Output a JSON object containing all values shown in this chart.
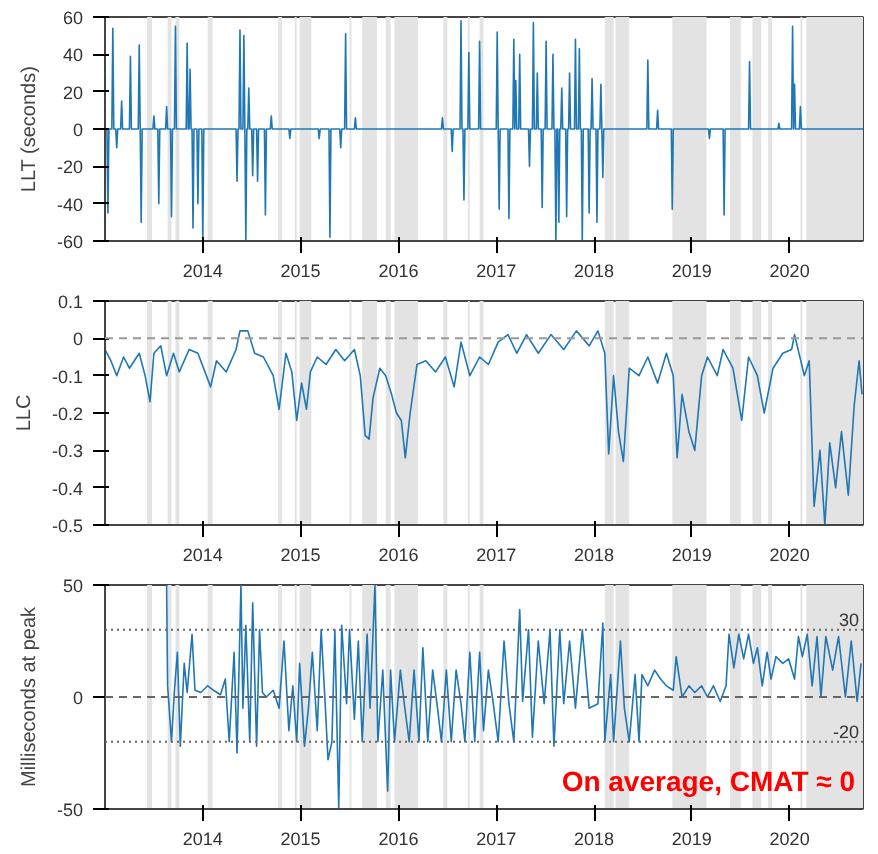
{
  "chart_data": [
    {
      "type": "line",
      "ylabel": "LLT (seconds)",
      "xlim": [
        2013,
        2020.75
      ],
      "xticks": [
        2014,
        2015,
        2016,
        2017,
        2018,
        2019,
        2020
      ],
      "ylim": [
        -60,
        60
      ],
      "yticks": [
        -60,
        -40,
        -20,
        0,
        20,
        40,
        60
      ],
      "grid": false,
      "marker": "none",
      "line_style": "solid",
      "bands": [
        {
          "axis": "x",
          "from": 2013.43,
          "to": 2013.48,
          "color": "#e3e3e3"
        },
        {
          "axis": "x",
          "from": 2013.64,
          "to": 2013.68,
          "color": "#e3e3e3"
        },
        {
          "axis": "x",
          "from": 2013.72,
          "to": 2013.76,
          "color": "#e3e3e3"
        },
        {
          "axis": "x",
          "from": 2014.05,
          "to": 2014.1,
          "color": "#e3e3e3"
        },
        {
          "axis": "x",
          "from": 2014.77,
          "to": 2014.81,
          "color": "#e3e3e3"
        },
        {
          "axis": "x",
          "from": 2014.94,
          "to": 2014.96,
          "color": "#e3e3e3"
        },
        {
          "axis": "x",
          "from": 2014.99,
          "to": 2015.11,
          "color": "#e3e3e3"
        },
        {
          "axis": "x",
          "from": 2015.5,
          "to": 2015.52,
          "color": "#e3e3e3"
        },
        {
          "axis": "x",
          "from": 2015.63,
          "to": 2015.78,
          "color": "#e3e3e3"
        },
        {
          "axis": "x",
          "from": 2015.87,
          "to": 2015.92,
          "color": "#e3e3e3"
        },
        {
          "axis": "x",
          "from": 2015.96,
          "to": 2016.2,
          "color": "#e3e3e3"
        },
        {
          "axis": "x",
          "from": 2016.46,
          "to": 2016.5,
          "color": "#e3e3e3"
        },
        {
          "axis": "x",
          "from": 2016.71,
          "to": 2016.73,
          "color": "#e3e3e3"
        },
        {
          "axis": "x",
          "from": 2016.83,
          "to": 2016.87,
          "color": "#e3e3e3"
        },
        {
          "axis": "x",
          "from": 2018.11,
          "to": 2018.2,
          "color": "#e3e3e3"
        },
        {
          "axis": "x",
          "from": 2018.22,
          "to": 2018.36,
          "color": "#e3e3e3"
        },
        {
          "axis": "x",
          "from": 2018.8,
          "to": 2019.15,
          "color": "#e3e3e3"
        },
        {
          "axis": "x",
          "from": 2019.39,
          "to": 2019.5,
          "color": "#e3e3e3"
        },
        {
          "axis": "x",
          "from": 2019.62,
          "to": 2019.71,
          "color": "#e3e3e3"
        },
        {
          "axis": "x",
          "from": 2019.78,
          "to": 2019.82,
          "color": "#e3e3e3"
        },
        {
          "axis": "x",
          "from": 2020.11,
          "to": 2020.13,
          "color": "#e3e3e3"
        },
        {
          "axis": "x",
          "from": 2020.17,
          "to": 2020.75,
          "color": "#e3e3e3"
        }
      ],
      "series": [
        {
          "color": "#1f77b4",
          "x": [
            2013.0,
            2013.02,
            2013.03,
            2013.04,
            2013.07,
            2013.08,
            2013.09,
            2013.11,
            2013.12,
            2013.13,
            2013.16,
            2013.17,
            2013.18,
            2013.25,
            2013.26,
            2013.27,
            2013.34,
            2013.35,
            2013.36,
            2013.37,
            2013.38,
            2013.49,
            2013.5,
            2013.51,
            2013.54,
            2013.55,
            2013.56,
            2013.62,
            2013.63,
            2013.64,
            2013.67,
            2013.68,
            2013.69,
            2013.71,
            2013.72,
            2013.73,
            2013.83,
            2013.84,
            2013.85,
            2013.86,
            2013.87,
            2013.88,
            2013.89,
            2013.9,
            2013.91,
            2013.94,
            2013.95,
            2013.96,
            2013.99,
            2014.0,
            2014.01,
            2014.34,
            2014.35,
            2014.36,
            2014.37,
            2014.38,
            2014.39,
            2014.41,
            2014.42,
            2014.43,
            2014.44,
            2014.45,
            2014.46,
            2014.47,
            2014.48,
            2014.5,
            2014.51,
            2014.52,
            2014.55,
            2014.56,
            2014.57,
            2014.63,
            2014.64,
            2014.65,
            2014.69,
            2014.7,
            2014.71,
            2014.88,
            2014.89,
            2014.9,
            2015.18,
            2015.19,
            2015.2,
            2015.29,
            2015.3,
            2015.31,
            2015.4,
            2015.41,
            2015.42,
            2015.45,
            2015.46,
            2015.47,
            2015.55,
            2015.56,
            2015.57,
            2016.44,
            2016.45,
            2016.46,
            2016.54,
            2016.55,
            2016.56,
            2016.63,
            2016.64,
            2016.65,
            2016.66,
            2016.67,
            2016.68,
            2016.71,
            2016.72,
            2016.73,
            2016.82,
            2016.83,
            2016.84,
            2017.0,
            2017.01,
            2017.02,
            2017.03,
            2017.04,
            2017.12,
            2017.13,
            2017.14,
            2017.17,
            2017.18,
            2017.19,
            2017.2,
            2017.21,
            2017.23,
            2017.24,
            2017.25,
            2017.33,
            2017.34,
            2017.35,
            2017.37,
            2017.38,
            2017.39,
            2017.41,
            2017.42,
            2017.43,
            2017.46,
            2017.47,
            2017.48,
            2017.5,
            2017.51,
            2017.52,
            2017.57,
            2017.58,
            2017.59,
            2017.6,
            2017.61,
            2017.62,
            2017.63,
            2017.64,
            2017.65,
            2017.66,
            2017.67,
            2017.68,
            2017.71,
            2017.72,
            2017.73,
            2017.74,
            2017.75,
            2017.76,
            2017.8,
            2017.81,
            2017.82,
            2017.84,
            2017.85,
            2017.86,
            2017.87,
            2017.88,
            2017.89,
            2017.94,
            2017.95,
            2017.96,
            2017.97,
            2017.98,
            2017.99,
            2018.02,
            2018.03,
            2018.04,
            2018.06,
            2018.07,
            2018.08,
            2018.09,
            2018.1,
            2018.54,
            2018.55,
            2018.56,
            2018.64,
            2018.65,
            2018.66,
            2018.79,
            2018.8,
            2018.81,
            2019.17,
            2019.18,
            2019.19,
            2019.32,
            2019.33,
            2019.34,
            2019.58,
            2019.59,
            2019.6,
            2019.88,
            2019.89,
            2019.9,
            2020.02,
            2020.03,
            2020.04,
            2020.05,
            2020.06,
            2020.1,
            2020.11,
            2020.12,
            2020.75
          ],
          "values": [
            0,
            0,
            -45,
            0,
            0,
            54,
            0,
            0,
            -10,
            0,
            0,
            15,
            0,
            0,
            39,
            0,
            0,
            45,
            0,
            -50,
            0,
            0,
            7,
            0,
            0,
            -40,
            0,
            0,
            12,
            0,
            0,
            -47,
            0,
            0,
            55,
            0,
            0,
            46,
            0,
            0,
            32,
            0,
            0,
            -53,
            0,
            0,
            -40,
            0,
            0,
            -60,
            0,
            0,
            -28,
            0,
            0,
            53,
            0,
            0,
            50,
            0,
            -60,
            0,
            0,
            22,
            0,
            0,
            -25,
            0,
            0,
            -28,
            0,
            0,
            -46,
            0,
            0,
            7,
            0,
            0,
            -5,
            0,
            0,
            -5,
            0,
            0,
            -58,
            0,
            0,
            -10,
            0,
            0,
            51,
            0,
            0,
            6,
            0,
            0,
            6,
            0,
            0,
            -12,
            0,
            0,
            58,
            0,
            0,
            -38,
            0,
            0,
            41,
            0,
            0,
            47,
            0,
            0,
            52,
            0,
            -43,
            0,
            0,
            -48,
            0,
            0,
            48,
            0,
            26,
            0,
            0,
            40,
            0,
            0,
            -20,
            0,
            0,
            57,
            0,
            0,
            30,
            0,
            0,
            -42,
            0,
            0,
            47,
            0,
            0,
            40,
            0,
            0,
            -60,
            0,
            0,
            -50,
            0,
            0,
            22,
            0,
            0,
            -47,
            0,
            0,
            30,
            0,
            0,
            48,
            0,
            0,
            43,
            0,
            0,
            -60,
            0,
            0,
            -45,
            0,
            0,
            27,
            0,
            0,
            -50,
            0,
            0,
            24,
            0,
            -26,
            0,
            0,
            37,
            0,
            0,
            10,
            0,
            0,
            -43,
            0,
            0,
            -5,
            0,
            0,
            -46,
            0,
            0,
            36,
            0,
            0,
            3,
            0,
            0,
            55,
            0,
            24,
            0,
            0,
            12,
            0,
            0
          ]
        }
      ]
    },
    {
      "type": "line",
      "ylabel": "LLC",
      "xlim": [
        2013,
        2020.75
      ],
      "xticks": [
        2014,
        2015,
        2016,
        2017,
        2018,
        2019,
        2020
      ],
      "ylim": [
        -0.5,
        0.1
      ],
      "yticks": [
        -0.5,
        -0.4,
        -0.3,
        -0.2,
        -0.1,
        0,
        0.1
      ],
      "grid": false,
      "marker": "none",
      "line_style": "solid",
      "ref_lines": [
        {
          "axis": "y",
          "value": 0,
          "label": null,
          "color": "#999999",
          "line_style": "dashed"
        }
      ],
      "bands": [
        {
          "axis": "x",
          "from": 2013.43,
          "to": 2013.48,
          "color": "#e3e3e3"
        },
        {
          "axis": "x",
          "from": 2013.64,
          "to": 2013.68,
          "color": "#e3e3e3"
        },
        {
          "axis": "x",
          "from": 2013.72,
          "to": 2013.76,
          "color": "#e3e3e3"
        },
        {
          "axis": "x",
          "from": 2014.05,
          "to": 2014.1,
          "color": "#e3e3e3"
        },
        {
          "axis": "x",
          "from": 2014.77,
          "to": 2014.81,
          "color": "#e3e3e3"
        },
        {
          "axis": "x",
          "from": 2014.94,
          "to": 2014.96,
          "color": "#e3e3e3"
        },
        {
          "axis": "x",
          "from": 2014.99,
          "to": 2015.11,
          "color": "#e3e3e3"
        },
        {
          "axis": "x",
          "from": 2015.5,
          "to": 2015.52,
          "color": "#e3e3e3"
        },
        {
          "axis": "x",
          "from": 2015.63,
          "to": 2015.78,
          "color": "#e3e3e3"
        },
        {
          "axis": "x",
          "from": 2015.87,
          "to": 2015.92,
          "color": "#e3e3e3"
        },
        {
          "axis": "x",
          "from": 2015.96,
          "to": 2016.2,
          "color": "#e3e3e3"
        },
        {
          "axis": "x",
          "from": 2016.46,
          "to": 2016.5,
          "color": "#e3e3e3"
        },
        {
          "axis": "x",
          "from": 2016.71,
          "to": 2016.73,
          "color": "#e3e3e3"
        },
        {
          "axis": "x",
          "from": 2016.83,
          "to": 2016.87,
          "color": "#e3e3e3"
        },
        {
          "axis": "x",
          "from": 2018.11,
          "to": 2018.2,
          "color": "#e3e3e3"
        },
        {
          "axis": "x",
          "from": 2018.22,
          "to": 2018.36,
          "color": "#e3e3e3"
        },
        {
          "axis": "x",
          "from": 2018.8,
          "to": 2019.15,
          "color": "#e3e3e3"
        },
        {
          "axis": "x",
          "from": 2019.39,
          "to": 2019.5,
          "color": "#e3e3e3"
        },
        {
          "axis": "x",
          "from": 2019.62,
          "to": 2019.71,
          "color": "#e3e3e3"
        },
        {
          "axis": "x",
          "from": 2019.78,
          "to": 2019.82,
          "color": "#e3e3e3"
        },
        {
          "axis": "x",
          "from": 2020.11,
          "to": 2020.13,
          "color": "#e3e3e3"
        },
        {
          "axis": "x",
          "from": 2020.17,
          "to": 2020.75,
          "color": "#e3e3e3"
        }
      ],
      "series": [
        {
          "color": "#1f77b4",
          "x": [
            2013.0,
            2013.06,
            2013.12,
            2013.19,
            2013.25,
            2013.35,
            2013.41,
            2013.46,
            2013.5,
            2013.57,
            2013.63,
            2013.7,
            2013.76,
            2013.86,
            2013.95,
            2014.08,
            2014.14,
            2014.24,
            2014.34,
            2014.38,
            2014.46,
            2014.53,
            2014.62,
            2014.72,
            2014.78,
            2014.85,
            2014.91,
            2014.96,
            2015.01,
            2015.06,
            2015.1,
            2015.17,
            2015.26,
            2015.36,
            2015.45,
            2015.55,
            2015.61,
            2015.66,
            2015.7,
            2015.74,
            2015.81,
            2015.87,
            2015.93,
            2015.98,
            2016.03,
            2016.07,
            2016.12,
            2016.19,
            2016.28,
            2016.38,
            2016.48,
            2016.57,
            2016.64,
            2016.73,
            2016.83,
            2016.92,
            2017.02,
            2017.12,
            2017.21,
            2017.31,
            2017.43,
            2017.56,
            2017.69,
            2017.82,
            2017.95,
            2018.04,
            2018.11,
            2018.15,
            2018.2,
            2018.25,
            2018.3,
            2018.36,
            2018.46,
            2018.55,
            2018.65,
            2018.74,
            2018.81,
            2018.85,
            2018.9,
            2018.97,
            2019.03,
            2019.1,
            2019.16,
            2019.26,
            2019.32,
            2019.42,
            2019.51,
            2019.58,
            2019.67,
            2019.74,
            2019.83,
            2019.93,
            2020.02,
            2020.05,
            2020.15,
            2020.2,
            2020.25,
            2020.31,
            2020.36,
            2020.41,
            2020.47,
            2020.53,
            2020.6,
            2020.66,
            2020.71,
            2020.74
          ],
          "values": [
            -0.03,
            -0.06,
            -0.1,
            -0.05,
            -0.08,
            -0.04,
            -0.1,
            -0.17,
            -0.04,
            -0.02,
            -0.1,
            -0.04,
            -0.09,
            -0.03,
            -0.04,
            -0.13,
            -0.06,
            -0.09,
            -0.03,
            0.02,
            0.02,
            -0.04,
            -0.05,
            -0.1,
            -0.19,
            -0.04,
            -0.09,
            -0.22,
            -0.12,
            -0.19,
            -0.09,
            -0.05,
            -0.07,
            -0.03,
            -0.06,
            -0.03,
            -0.1,
            -0.26,
            -0.27,
            -0.16,
            -0.08,
            -0.1,
            -0.15,
            -0.2,
            -0.22,
            -0.32,
            -0.2,
            -0.07,
            -0.06,
            -0.09,
            -0.05,
            -0.13,
            -0.01,
            -0.1,
            -0.05,
            -0.07,
            -0.01,
            0.01,
            -0.04,
            0.01,
            -0.04,
            0.01,
            -0.03,
            0.02,
            -0.02,
            0.02,
            -0.04,
            -0.31,
            -0.1,
            -0.25,
            -0.33,
            -0.08,
            -0.1,
            -0.05,
            -0.12,
            -0.04,
            -0.1,
            -0.32,
            -0.15,
            -0.25,
            -0.3,
            -0.1,
            -0.05,
            -0.1,
            -0.03,
            -0.08,
            -0.22,
            -0.05,
            -0.1,
            -0.2,
            -0.08,
            -0.04,
            -0.03,
            0.01,
            -0.1,
            -0.06,
            -0.45,
            -0.3,
            -0.5,
            -0.28,
            -0.4,
            -0.25,
            -0.42,
            -0.18,
            -0.06,
            -0.15
          ]
        }
      ]
    },
    {
      "type": "line",
      "ylabel": "Milliseconds at peak",
      "xlim": [
        2013,
        2020.75
      ],
      "xticks": [
        2014,
        2015,
        2016,
        2017,
        2018,
        2019,
        2020
      ],
      "ylim": [
        -50,
        50
      ],
      "yticks": [
        -50,
        0,
        50
      ],
      "grid": false,
      "marker": "none",
      "line_style": "solid",
      "annotations": [
        "On average, CMAT ≈ 0"
      ],
      "ref_lines": [
        {
          "axis": "y",
          "value": 30,
          "label": "30",
          "color": "#666666",
          "line_style": "dotted"
        },
        {
          "axis": "y",
          "value": 0,
          "label": null,
          "color": "#666666",
          "line_style": "dashed"
        },
        {
          "axis": "y",
          "value": -20,
          "label": "-20",
          "color": "#666666",
          "line_style": "dotted"
        }
      ],
      "bands": [
        {
          "axis": "x",
          "from": 2013.43,
          "to": 2013.48,
          "color": "#e3e3e3"
        },
        {
          "axis": "x",
          "from": 2013.64,
          "to": 2013.68,
          "color": "#e3e3e3"
        },
        {
          "axis": "x",
          "from": 2013.72,
          "to": 2013.76,
          "color": "#e3e3e3"
        },
        {
          "axis": "x",
          "from": 2014.05,
          "to": 2014.1,
          "color": "#e3e3e3"
        },
        {
          "axis": "x",
          "from": 2014.77,
          "to": 2014.81,
          "color": "#e3e3e3"
        },
        {
          "axis": "x",
          "from": 2014.94,
          "to": 2014.96,
          "color": "#e3e3e3"
        },
        {
          "axis": "x",
          "from": 2014.99,
          "to": 2015.11,
          "color": "#e3e3e3"
        },
        {
          "axis": "x",
          "from": 2015.5,
          "to": 2015.52,
          "color": "#e3e3e3"
        },
        {
          "axis": "x",
          "from": 2015.63,
          "to": 2015.78,
          "color": "#e3e3e3"
        },
        {
          "axis": "x",
          "from": 2015.87,
          "to": 2015.92,
          "color": "#e3e3e3"
        },
        {
          "axis": "x",
          "from": 2015.96,
          "to": 2016.2,
          "color": "#e3e3e3"
        },
        {
          "axis": "x",
          "from": 2016.46,
          "to": 2016.5,
          "color": "#e3e3e3"
        },
        {
          "axis": "x",
          "from": 2016.71,
          "to": 2016.73,
          "color": "#e3e3e3"
        },
        {
          "axis": "x",
          "from": 2016.83,
          "to": 2016.87,
          "color": "#e3e3e3"
        },
        {
          "axis": "x",
          "from": 2018.11,
          "to": 2018.2,
          "color": "#e3e3e3"
        },
        {
          "axis": "x",
          "from": 2018.22,
          "to": 2018.36,
          "color": "#e3e3e3"
        },
        {
          "axis": "x",
          "from": 2018.8,
          "to": 2019.15,
          "color": "#e3e3e3"
        },
        {
          "axis": "x",
          "from": 2019.39,
          "to": 2019.5,
          "color": "#e3e3e3"
        },
        {
          "axis": "x",
          "from": 2019.62,
          "to": 2019.71,
          "color": "#e3e3e3"
        },
        {
          "axis": "x",
          "from": 2019.78,
          "to": 2019.82,
          "color": "#e3e3e3"
        },
        {
          "axis": "x",
          "from": 2020.11,
          "to": 2020.13,
          "color": "#e3e3e3"
        },
        {
          "axis": "x",
          "from": 2020.17,
          "to": 2020.75,
          "color": "#e3e3e3"
        }
      ],
      "series": [
        {
          "color": "#1f77b4",
          "x": [
            2013.63,
            2013.64,
            2013.68,
            2013.71,
            2013.74,
            2013.77,
            2013.81,
            2013.84,
            2013.89,
            2013.92,
            2013.98,
            2014.05,
            2014.11,
            2014.18,
            2014.23,
            2014.27,
            2014.32,
            2014.35,
            2014.39,
            2014.41,
            2014.44,
            2014.48,
            2014.51,
            2014.55,
            2014.58,
            2014.61,
            2014.65,
            2014.72,
            2014.78,
            2014.83,
            2014.88,
            2014.92,
            2014.96,
            2014.99,
            2015.04,
            2015.08,
            2015.12,
            2015.17,
            2015.21,
            2015.25,
            2015.28,
            2015.32,
            2015.35,
            2015.39,
            2015.42,
            2015.47,
            2015.5,
            2015.55,
            2015.59,
            2015.63,
            2015.68,
            2015.71,
            2015.76,
            2015.79,
            2015.84,
            2015.89,
            2015.92,
            2015.96,
            2016.02,
            2016.06,
            2016.11,
            2016.16,
            2016.21,
            2016.25,
            2016.3,
            2016.35,
            2016.4,
            2016.44,
            2016.49,
            2016.54,
            2016.59,
            2016.64,
            2016.68,
            2016.73,
            2016.78,
            2016.83,
            2016.87,
            2016.92,
            2016.97,
            2017.02,
            2017.08,
            2017.13,
            2017.18,
            2017.24,
            2017.27,
            2017.33,
            2017.37,
            2017.43,
            2017.49,
            2017.55,
            2017.59,
            2017.65,
            2017.69,
            2017.75,
            2017.81,
            2017.88,
            2017.95,
            2018.04,
            2018.09,
            2018.11,
            2018.17,
            2018.2,
            2018.27,
            2018.31,
            2018.36,
            2018.42,
            2018.46,
            2018.49,
            2018.55,
            2018.62,
            2018.68,
            2018.74,
            2018.81,
            2018.84,
            2018.9,
            2018.97,
            2019.03,
            2019.1,
            2019.16,
            2019.22,
            2019.29,
            2019.35,
            2019.38,
            2019.43,
            2019.48,
            2019.53,
            2019.58,
            2019.63,
            2019.67,
            2019.72,
            2019.77,
            2019.81,
            2019.86,
            2019.93,
            2019.99,
            2020.05,
            2020.09,
            2020.13,
            2020.18,
            2020.23,
            2020.28,
            2020.32,
            2020.37,
            2020.44,
            2020.5,
            2020.57,
            2020.63,
            2020.69,
            2020.73
          ],
          "values": [
            50,
            5,
            -20,
            3,
            20,
            -22,
            15,
            2,
            28,
            3,
            2,
            5,
            3,
            1,
            8,
            -20,
            20,
            -25,
            50,
            -5,
            32,
            -20,
            42,
            -22,
            30,
            2,
            0,
            3,
            -5,
            25,
            -15,
            5,
            -20,
            15,
            -22,
            -5,
            20,
            -15,
            30,
            -2,
            -28,
            -20,
            30,
            -50,
            32,
            -3,
            30,
            -10,
            25,
            -20,
            28,
            -5,
            50,
            -20,
            12,
            -42,
            12,
            -20,
            12,
            -3,
            -20,
            12,
            -20,
            22,
            -20,
            12,
            -5,
            -20,
            12,
            -20,
            12,
            -3,
            -20,
            20,
            -20,
            20,
            -15,
            12,
            -3,
            -20,
            25,
            -3,
            -20,
            39,
            -2,
            30,
            -18,
            25,
            -3,
            30,
            -22,
            30,
            -3,
            25,
            -5,
            30,
            -5,
            -3,
            33,
            -20,
            10,
            -20,
            25,
            -5,
            -20,
            10,
            -20,
            10,
            5,
            12,
            8,
            5,
            3,
            18,
            0,
            5,
            2,
            5,
            0,
            5,
            -2,
            5,
            28,
            13,
            28,
            17,
            28,
            15,
            22,
            5,
            20,
            8,
            18,
            15,
            17,
            8,
            27,
            18,
            28,
            5,
            27,
            0,
            27,
            12,
            27,
            0,
            25,
            -2,
            15
          ]
        }
      ]
    }
  ]
}
